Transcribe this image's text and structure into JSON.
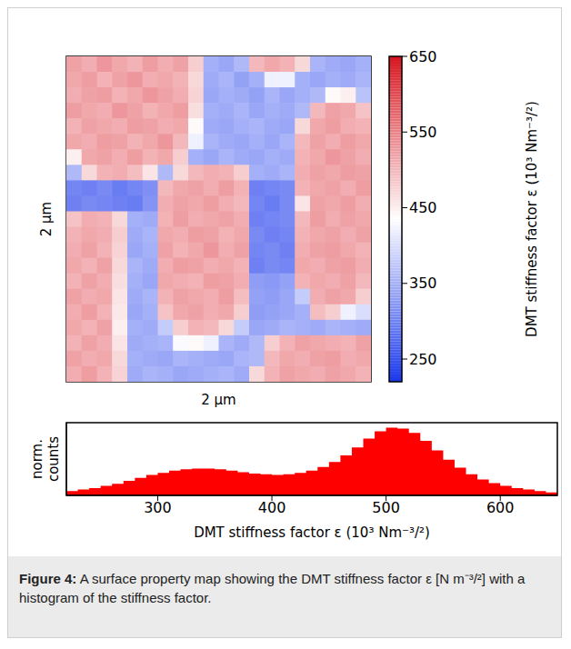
{
  "chart_data": [
    {
      "type": "heatmap",
      "xlabel": "2 μm",
      "ylabel": "2 μm",
      "tick_labels": false,
      "cells": [
        [
          520,
          510,
          530,
          515,
          505,
          525,
          510,
          520,
          480,
          350,
          340,
          360,
          500,
          515,
          505,
          470,
          355,
          345,
          340,
          350
        ],
        [
          515,
          525,
          505,
          520,
          530,
          510,
          515,
          505,
          470,
          345,
          355,
          335,
          350,
          420,
          420,
          350,
          340,
          350,
          345,
          355
        ],
        [
          510,
          520,
          525,
          505,
          515,
          530,
          520,
          510,
          475,
          340,
          350,
          345,
          335,
          355,
          340,
          350,
          360,
          440,
          450,
          370
        ],
        [
          525,
          515,
          510,
          530,
          520,
          505,
          515,
          525,
          465,
          350,
          345,
          355,
          340,
          350,
          345,
          360,
          500,
          520,
          515,
          490
        ],
        [
          505,
          520,
          515,
          510,
          525,
          520,
          510,
          515,
          440,
          345,
          340,
          350,
          355,
          345,
          340,
          470,
          515,
          525,
          510,
          505
        ],
        [
          515,
          510,
          525,
          520,
          505,
          515,
          530,
          500,
          420,
          355,
          345,
          340,
          350,
          340,
          355,
          500,
          520,
          510,
          525,
          515
        ],
        [
          450,
          515,
          520,
          510,
          525,
          505,
          515,
          480,
          350,
          340,
          355,
          345,
          340,
          350,
          345,
          505,
          515,
          530,
          520,
          510
        ],
        [
          360,
          470,
          505,
          510,
          495,
          460,
          360,
          470,
          500,
          510,
          505,
          480,
          350,
          345,
          355,
          510,
          520,
          515,
          525,
          520
        ],
        [
          305,
          300,
          310,
          295,
          305,
          315,
          500,
          515,
          520,
          510,
          525,
          505,
          300,
          305,
          310,
          505,
          515,
          520,
          510,
          525
        ],
        [
          300,
          310,
          305,
          300,
          295,
          320,
          510,
          520,
          515,
          525,
          510,
          500,
          305,
          295,
          310,
          460,
          520,
          515,
          525,
          510
        ],
        [
          490,
          510,
          505,
          470,
          350,
          345,
          505,
          525,
          510,
          515,
          520,
          510,
          300,
          305,
          310,
          500,
          525,
          510,
          520,
          515
        ],
        [
          505,
          515,
          510,
          480,
          345,
          355,
          515,
          510,
          525,
          520,
          505,
          515,
          310,
          300,
          305,
          505,
          515,
          520,
          510,
          520
        ],
        [
          510,
          520,
          505,
          475,
          340,
          350,
          520,
          505,
          515,
          530,
          510,
          520,
          305,
          310,
          300,
          510,
          520,
          525,
          515,
          505
        ],
        [
          515,
          505,
          520,
          470,
          355,
          345,
          510,
          525,
          520,
          510,
          515,
          505,
          300,
          310,
          305,
          515,
          510,
          520,
          525,
          510
        ],
        [
          505,
          520,
          510,
          465,
          350,
          340,
          515,
          510,
          505,
          525,
          520,
          510,
          330,
          325,
          335,
          505,
          515,
          510,
          520,
          500
        ],
        [
          520,
          510,
          515,
          460,
          345,
          355,
          505,
          520,
          515,
          510,
          525,
          495,
          335,
          330,
          340,
          380,
          510,
          520,
          515,
          480
        ],
        [
          510,
          525,
          505,
          455,
          340,
          350,
          490,
          515,
          520,
          510,
          515,
          480,
          330,
          335,
          340,
          350,
          495,
          480,
          420,
          400
        ],
        [
          515,
          505,
          520,
          450,
          350,
          345,
          380,
          480,
          505,
          500,
          470,
          380,
          340,
          345,
          355,
          350,
          345,
          355,
          350,
          345
        ],
        [
          505,
          520,
          510,
          460,
          345,
          350,
          355,
          430,
          440,
          420,
          355,
          345,
          360,
          480,
          505,
          520,
          515,
          510,
          505,
          520
        ],
        [
          520,
          510,
          515,
          470,
          350,
          345,
          340,
          355,
          350,
          345,
          340,
          355,
          360,
          500,
          515,
          510,
          520,
          525,
          510,
          515
        ],
        [
          510,
          525,
          505,
          475,
          345,
          355,
          350,
          340,
          345,
          350,
          355,
          345,
          470,
          505,
          520,
          515,
          510,
          520,
          515,
          505
        ]
      ],
      "colorbar": {
        "label": "DMT stiffness factor ε (10³ Nm⁻³/²)",
        "range": [
          220,
          650
        ],
        "ticks": [
          250,
          350,
          450,
          550,
          650
        ]
      }
    },
    {
      "type": "histogram",
      "xlabel": "DMT stiffness factor ε (10³ Nm⁻³/²)",
      "ylabel": "norm. counts",
      "color": "#ff0000",
      "tick_labels": "x",
      "bins": [
        220,
        230,
        240,
        250,
        260,
        270,
        280,
        290,
        300,
        310,
        320,
        330,
        340,
        350,
        360,
        370,
        380,
        390,
        400,
        410,
        420,
        430,
        440,
        450,
        460,
        470,
        480,
        490,
        500,
        510,
        520,
        530,
        540,
        550,
        560,
        570,
        580,
        590,
        600,
        610,
        620,
        630,
        640,
        650
      ],
      "counts": [
        0.06,
        0.08,
        0.1,
        0.13,
        0.16,
        0.2,
        0.24,
        0.28,
        0.31,
        0.34,
        0.36,
        0.37,
        0.37,
        0.36,
        0.34,
        0.32,
        0.3,
        0.29,
        0.28,
        0.29,
        0.31,
        0.34,
        0.39,
        0.46,
        0.55,
        0.66,
        0.78,
        0.88,
        0.93,
        0.92,
        0.86,
        0.75,
        0.62,
        0.49,
        0.38,
        0.29,
        0.22,
        0.17,
        0.13,
        0.1,
        0.08,
        0.06,
        0.04
      ],
      "xlim": [
        220,
        650
      ],
      "ylim": [
        0,
        1
      ],
      "xticks": [
        300,
        400,
        500,
        600
      ],
      "yticks": []
    }
  ],
  "caption": {
    "label": "Figure 4:",
    "text": "A surface property map showing the DMT stiffness factor ε [N m⁻³/²] with a histogram of the stiffness factor."
  }
}
